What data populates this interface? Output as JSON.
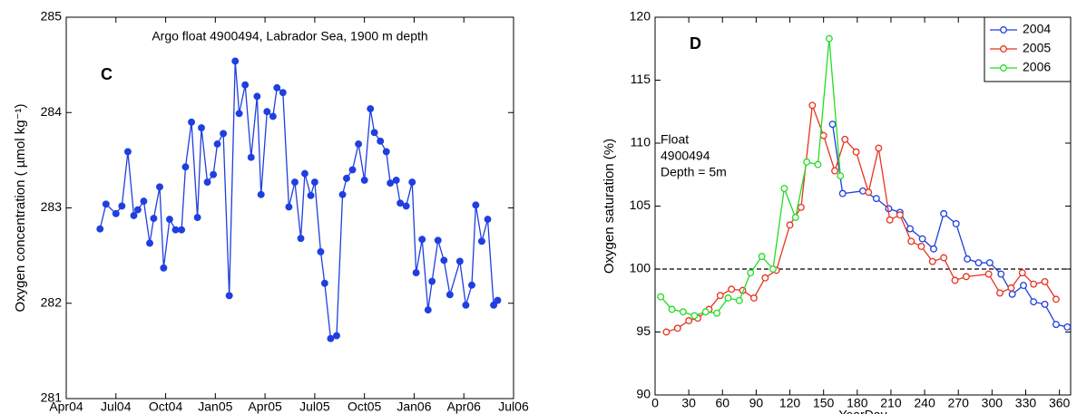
{
  "chart_data": [
    {
      "type": "line",
      "title": "Argo float 4900494, Labrador Sea, 1900 m depth",
      "annotation": "C",
      "y_label": "Oxygen concentration ( µmol kg⁻¹)",
      "xlim": [
        2004.25,
        2006.5
      ],
      "xticks": [
        {
          "value": 2004.25,
          "label": "Apr04"
        },
        {
          "value": 2004.5,
          "label": "Jul04"
        },
        {
          "value": 2004.75,
          "label": "Oct04"
        },
        {
          "value": 2005.0,
          "label": "Jan05"
        },
        {
          "value": 2005.25,
          "label": "Apr05"
        },
        {
          "value": 2005.5,
          "label": "Jul05"
        },
        {
          "value": 2005.75,
          "label": "Oct05"
        },
        {
          "value": 2006.0,
          "label": "Jan06"
        },
        {
          "value": 2006.25,
          "label": "Apr06"
        },
        {
          "value": 2006.5,
          "label": "Jul06"
        }
      ],
      "ylim": [
        281,
        285
      ],
      "yticks": [
        281,
        282,
        283,
        284,
        285
      ],
      "markers": "filled",
      "series": [
        {
          "color": "#1f3fe0",
          "x": [
            2004.42,
            2004.45,
            2004.5,
            2004.53,
            2004.56,
            2004.59,
            2004.61,
            2004.64,
            2004.67,
            2004.69,
            2004.72,
            2004.74,
            2004.77,
            2004.8,
            2004.83,
            2004.85,
            2004.88,
            2004.91,
            2004.93,
            2004.96,
            2004.99,
            2005.01,
            2005.04,
            2005.07,
            2005.1,
            2005.12,
            2005.15,
            2005.18,
            2005.21,
            2005.23,
            2005.26,
            2005.29,
            2005.31,
            2005.34,
            2005.37,
            2005.4,
            2005.43,
            2005.45,
            2005.48,
            2005.5,
            2005.53,
            2005.55,
            2005.58,
            2005.61,
            2005.64,
            2005.66,
            2005.69,
            2005.72,
            2005.75,
            2005.78,
            2005.8,
            2005.83,
            2005.86,
            2005.88,
            2005.91,
            2005.93,
            2005.96,
            2005.99,
            2006.01,
            2006.04,
            2006.07,
            2006.09,
            2006.12,
            2006.15,
            2006.18,
            2006.23,
            2006.26,
            2006.29,
            2006.31,
            2006.34,
            2006.37,
            2006.4,
            2006.42
          ],
          "values": [
            282.78,
            283.04,
            282.94,
            283.02,
            283.59,
            282.92,
            282.98,
            283.07,
            282.63,
            282.89,
            283.22,
            282.37,
            282.88,
            282.77,
            282.77,
            283.43,
            283.9,
            282.9,
            283.84,
            283.27,
            283.35,
            283.67,
            283.78,
            282.08,
            284.54,
            283.99,
            284.29,
            283.53,
            284.17,
            283.14,
            284.01,
            283.96,
            284.26,
            284.21,
            283.01,
            283.27,
            282.68,
            283.36,
            283.13,
            283.27,
            282.54,
            282.21,
            281.63,
            281.66,
            283.14,
            283.31,
            283.4,
            283.67,
            283.29,
            284.04,
            283.79,
            283.7,
            283.59,
            283.26,
            283.29,
            283.05,
            283.02,
            283.27,
            282.32,
            282.67,
            281.93,
            282.23,
            282.66,
            282.45,
            282.09,
            282.44,
            281.98,
            282.19,
            283.03,
            282.65,
            282.88,
            281.98,
            282.03
          ]
        }
      ]
    },
    {
      "type": "line",
      "annotation": "D",
      "note": [
        "Float",
        "4900494",
        "Depth = 5m"
      ],
      "x_label": "YearDay",
      "y_label": "Oxygen saturation (%)",
      "xlim": [
        0,
        370
      ],
      "xticks": [
        0,
        30,
        60,
        90,
        120,
        150,
        180,
        210,
        240,
        270,
        300,
        330,
        360
      ],
      "ylim": [
        90,
        120
      ],
      "yticks": [
        90,
        95,
        100,
        105,
        110,
        115,
        120
      ],
      "hline": 100,
      "legend": "top-right",
      "markers": "hollow",
      "series": [
        {
          "name": "2004",
          "color": "#1f3fe0",
          "x": [
            158,
            167,
            185,
            197,
            208,
            218,
            227,
            238,
            248,
            257,
            268,
            278,
            288,
            298,
            308,
            318,
            328,
            337,
            347,
            357,
            367
          ],
          "values": [
            111.5,
            106.0,
            106.2,
            105.6,
            104.8,
            104.5,
            103.2,
            102.4,
            101.6,
            104.4,
            103.6,
            100.8,
            100.5,
            100.5,
            99.6,
            98.0,
            98.7,
            97.4,
            97.2,
            95.6,
            95.4
          ]
        },
        {
          "name": "2005",
          "color": "#e8321e",
          "x": [
            10,
            20,
            30,
            38,
            48,
            58,
            68,
            78,
            88,
            98,
            108,
            120,
            130,
            140,
            150,
            160,
            169,
            179,
            190,
            199,
            209,
            218,
            228,
            237,
            247,
            257,
            267,
            277,
            297,
            307,
            317,
            327,
            337,
            347,
            357
          ],
          "values": [
            95.0,
            95.3,
            95.9,
            96.1,
            96.8,
            97.9,
            98.4,
            98.3,
            97.7,
            99.3,
            99.9,
            103.5,
            104.9,
            113.0,
            110.6,
            107.8,
            110.3,
            109.3,
            106.1,
            109.6,
            103.9,
            104.3,
            102.2,
            101.8,
            100.6,
            100.9,
            99.1,
            99.4,
            99.6,
            98.1,
            98.5,
            99.7,
            98.8,
            99.0,
            97.6
          ]
        },
        {
          "name": "2006",
          "color": "#22dd22",
          "x": [
            5,
            15,
            25,
            35,
            45,
            55,
            65,
            75,
            85,
            95,
            105,
            115,
            125,
            135,
            145,
            155,
            165
          ],
          "values": [
            97.8,
            96.8,
            96.6,
            96.3,
            96.6,
            96.5,
            97.7,
            97.5,
            99.7,
            101.0,
            100.0,
            106.4,
            104.1,
            108.5,
            108.3,
            118.3,
            107.4
          ]
        }
      ]
    }
  ]
}
